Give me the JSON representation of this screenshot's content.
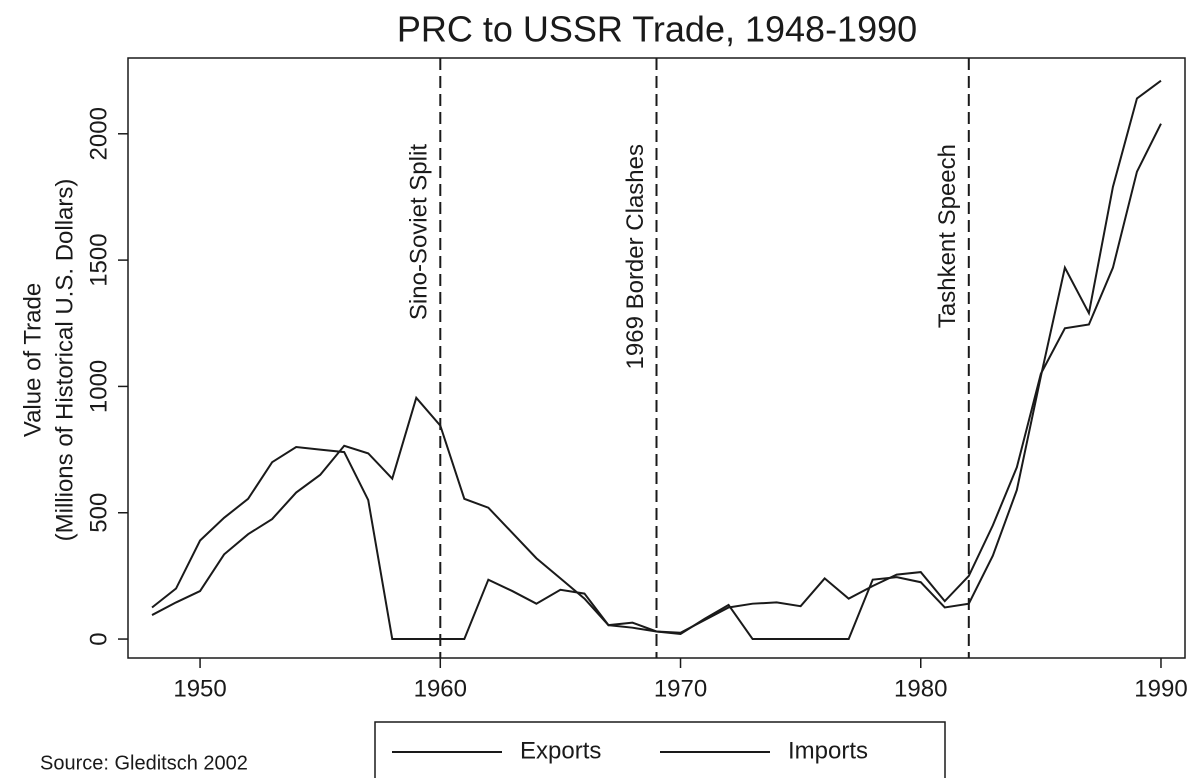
{
  "chart_data": {
    "type": "line",
    "title": "PRC to USSR Trade, 1948-1990",
    "y_label": [
      "Value of Trade",
      "(Millions of Historical U.S. Dollars)"
    ],
    "source": "Source: Gleditsch 2002",
    "x": [
      1948,
      1949,
      1950,
      1951,
      1952,
      1953,
      1954,
      1955,
      1956,
      1957,
      1958,
      1959,
      1960,
      1961,
      1962,
      1963,
      1964,
      1965,
      1966,
      1967,
      1968,
      1969,
      1970,
      1971,
      1972,
      1973,
      1974,
      1975,
      1976,
      1977,
      1978,
      1979,
      1980,
      1981,
      1982,
      1983,
      1984,
      1985,
      1986,
      1987,
      1988,
      1989,
      1990
    ],
    "series": [
      {
        "name": "Exports",
        "color": "#1a1a1a",
        "values": [
          125,
          200,
          390,
          480,
          555,
          700,
          760,
          750,
          740,
          550,
          0,
          0,
          0,
          0,
          235,
          190,
          140,
          195,
          180,
          55,
          65,
          30,
          20,
          80,
          135,
          0,
          0,
          0,
          0,
          0,
          235,
          245,
          225,
          125,
          140,
          330,
          590,
          1040,
          1470,
          1290,
          1790,
          2140,
          2210
        ]
      },
      {
        "name": "Imports",
        "color": "#1a1a1a",
        "values": [
          95,
          145,
          190,
          335,
          415,
          475,
          580,
          650,
          765,
          735,
          635,
          955,
          845,
          555,
          520,
          420,
          320,
          240,
          160,
          55,
          45,
          30,
          25,
          75,
          125,
          140,
          145,
          130,
          240,
          160,
          210,
          255,
          265,
          150,
          250,
          450,
          680,
          1050,
          1230,
          1245,
          1470,
          1850,
          2040
        ]
      }
    ],
    "annotations": [
      {
        "text": "Sino-Soviet Split",
        "x": 1960
      },
      {
        "text": "1969 Border Clashes",
        "x": 1969
      },
      {
        "text": "Tashkent Speech",
        "x": 1982
      }
    ],
    "xlim": [
      1947,
      1991
    ],
    "xticks": [
      1950,
      1960,
      1970,
      1980,
      1990
    ],
    "ylim": [
      -75,
      2300
    ],
    "yticks": [
      0,
      500,
      1000,
      1500,
      2000
    ],
    "grid": false
  }
}
